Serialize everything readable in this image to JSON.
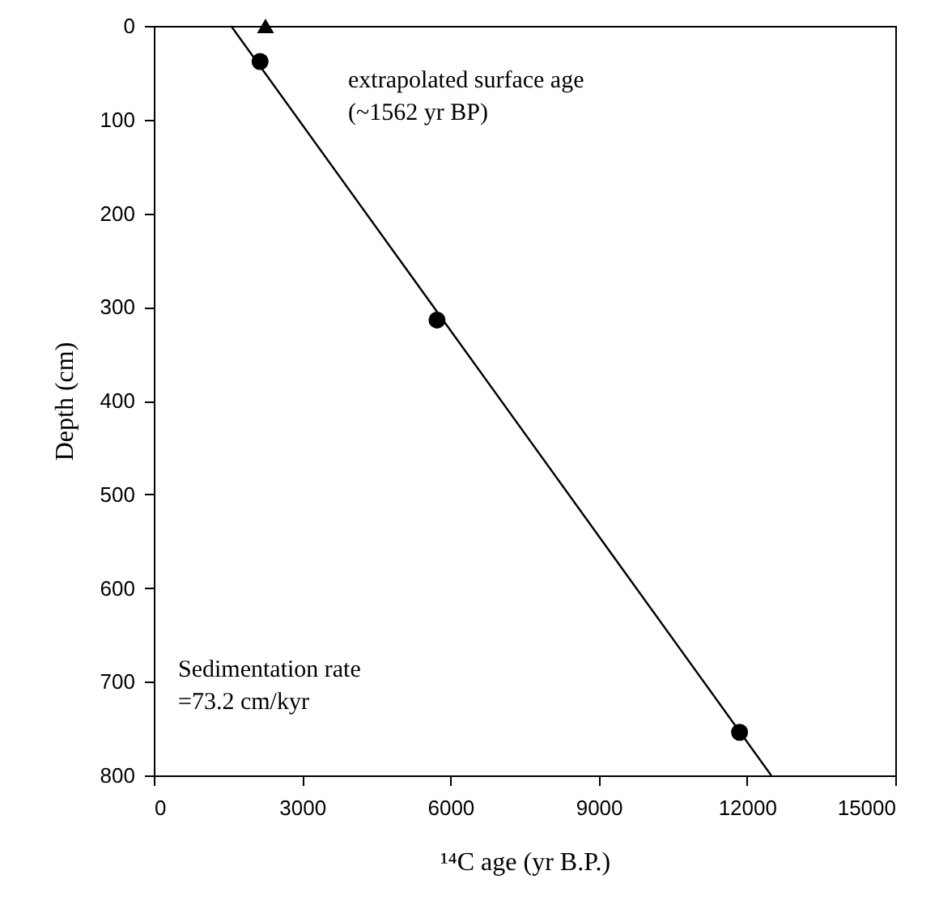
{
  "chart_data": {
    "type": "scatter",
    "xlabel": "¹⁴C age (yr B.P.)",
    "ylabel": "Depth (cm)",
    "xlim": [
      0,
      15000
    ],
    "xticks": [
      0,
      3000,
      6000,
      9000,
      12000,
      15000
    ],
    "ylim": [
      800,
      0
    ],
    "yticks": [
      0,
      100,
      200,
      300,
      400,
      500,
      600,
      700,
      800
    ],
    "grid": false,
    "annotations": [
      "extrapolated surface age\n(~1562 yr BP)",
      "Sedimentation rate\n=73.2 cm/kyr"
    ],
    "series": [
      {
        "marker": "circle",
        "color": "#000000",
        "x": [
          2150,
          5730,
          11850
        ],
        "values": [
          38,
          314,
          754
        ]
      },
      {
        "marker": "triangle",
        "color": "#000000",
        "x": [
          2260
        ],
        "values": [
          0
        ]
      },
      {
        "type": "line",
        "color": "#000000",
        "x": [
          1562,
          12490
        ],
        "values": [
          0,
          800
        ]
      }
    ]
  }
}
